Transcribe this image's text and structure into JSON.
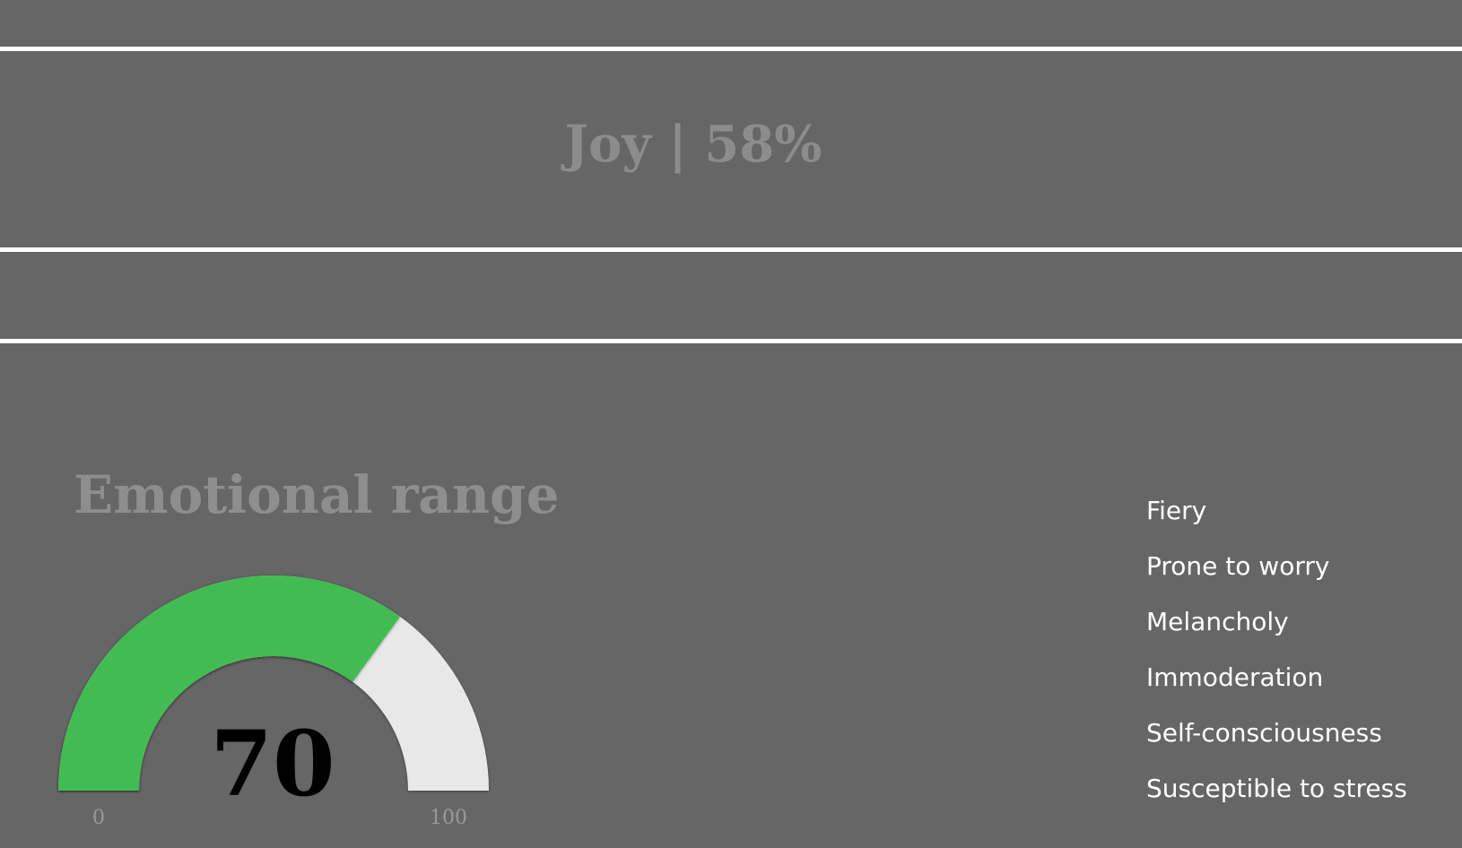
{
  "header": {
    "joy_title": "Joy | 58%"
  },
  "emotional_range": {
    "title": "Emotional range",
    "gauge": {
      "value": 70,
      "value_label": "70",
      "min_label": "0",
      "max_label": "100",
      "fill_color": "#43bb53",
      "track_color": "#e9e8e9"
    },
    "traits": [
      "Fiery",
      "Prone to worry",
      "Melancholy",
      "Immoderation",
      "Self-consciousness",
      "Susceptible to stress"
    ]
  }
}
